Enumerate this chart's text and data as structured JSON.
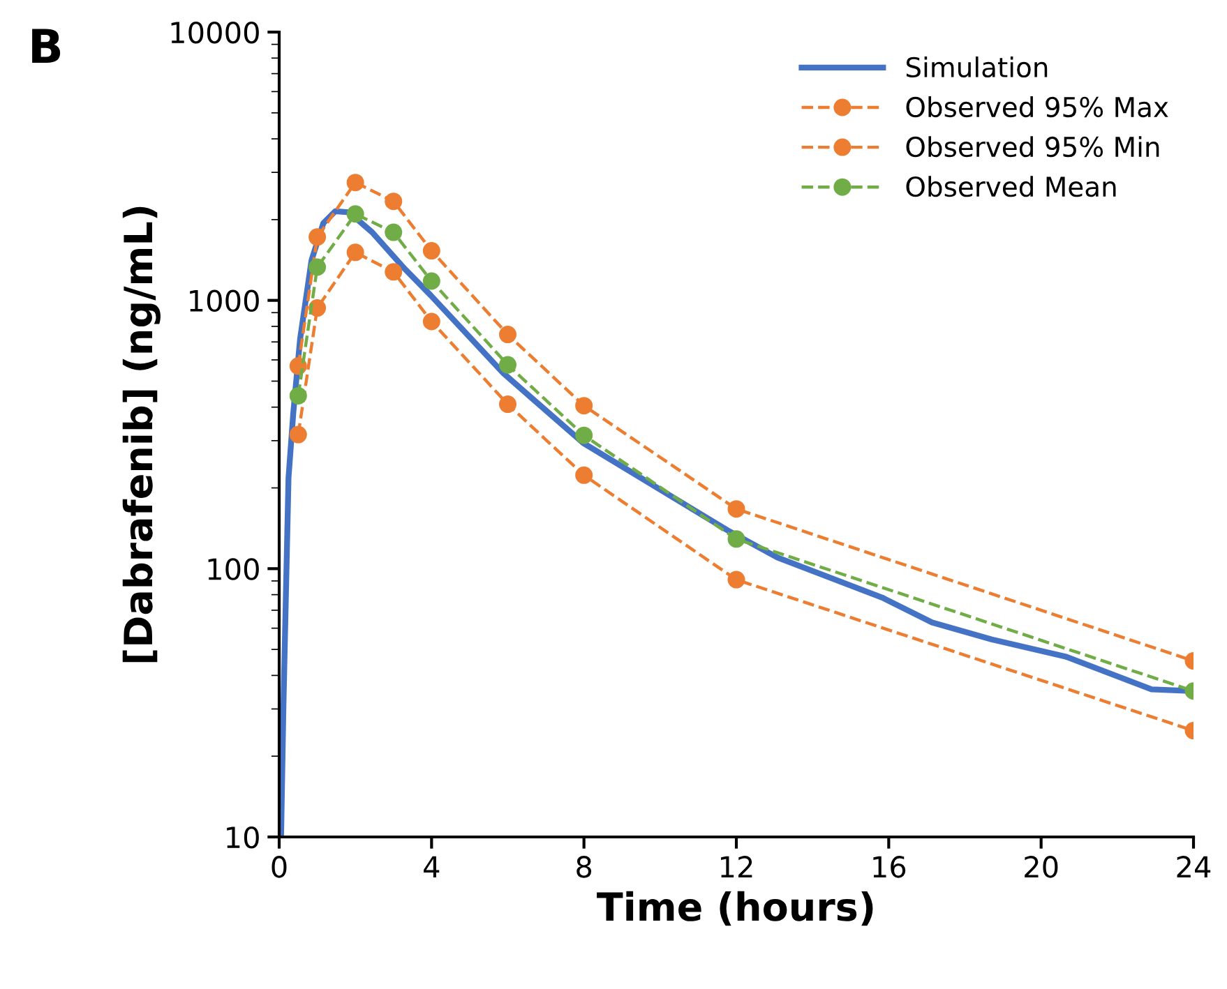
{
  "chart_data": {
    "type": "line",
    "title": "B",
    "xlabel": "Time (hours)",
    "ylabel": "[Dabrafenib] (ng/mL)",
    "log": "y",
    "xlim": [
      0,
      24
    ],
    "xticks": [
      0,
      4,
      8,
      12,
      16,
      20,
      24
    ],
    "ylim": [
      10,
      10000
    ],
    "yticks": [
      10,
      100,
      1000,
      10000
    ],
    "grid": false,
    "legend": "top right",
    "series": [
      {
        "name": "Simulation",
        "color": "#4472c4",
        "line_style": "solid",
        "marker": "none",
        "x": [
          0.05,
          0.11,
          0.245,
          0.37,
          0.55,
          0.85,
          1.16,
          1.47,
          1.83,
          2.44,
          3.3,
          3.97,
          5.89,
          7.98,
          11.77,
          13.08,
          15.83,
          17.14,
          18.7,
          20.67,
          22.9,
          23.94
        ],
        "values": [
          10,
          30,
          218,
          380,
          720,
          1413,
          1941,
          2148,
          2130,
          1794,
          1309,
          1047,
          534,
          294,
          139,
          110,
          78,
          63,
          54.5,
          46.9,
          35.5,
          35
        ]
      },
      {
        "name": "Observed 95% Max",
        "color": "#ed7d31",
        "line_style": "dashed",
        "marker": "circle",
        "x": [
          0.5,
          1,
          2,
          3,
          4,
          6,
          8,
          12,
          24
        ],
        "values": [
          569,
          1722,
          2750,
          2340,
          1530,
          746,
          405,
          167,
          45.3
        ]
      },
      {
        "name": "Observed 95% Min",
        "color": "#ed7d31",
        "line_style": "dashed",
        "marker": "circle",
        "x": [
          0.5,
          1,
          2,
          3,
          4,
          6,
          8,
          12,
          24
        ],
        "values": [
          316,
          937,
          1510,
          1277,
          834,
          410,
          223,
          91,
          24.9
        ]
      },
      {
        "name": "Observed Mean",
        "color": "#70ad47",
        "line_style": "dashed",
        "marker": "circle",
        "x": [
          0.5,
          1,
          2,
          3,
          4,
          6,
          8,
          12,
          24
        ],
        "values": [
          441,
          1330,
          2100,
          1793,
          1180,
          575,
          314,
          129,
          35
        ]
      }
    ]
  }
}
